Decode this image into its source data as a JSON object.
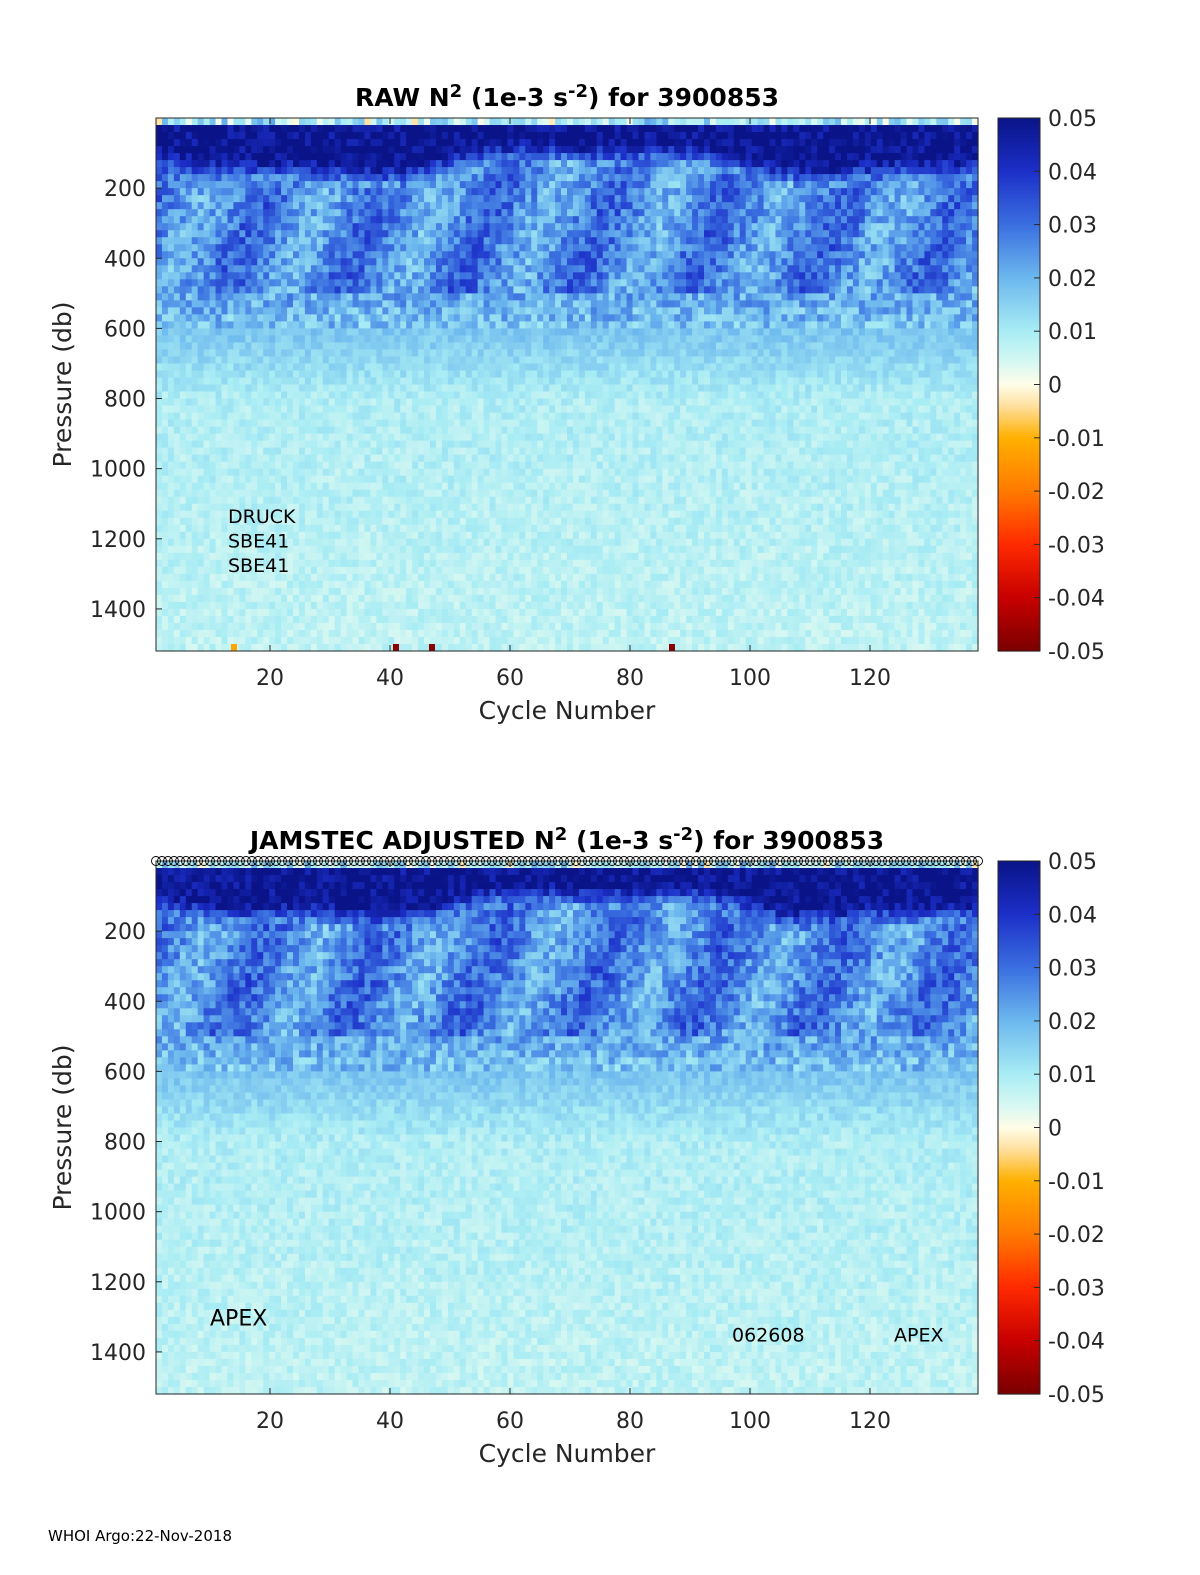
{
  "footer": "WHOI Argo:22-Nov-2018",
  "palette": {
    "stops": [
      {
        "v": -0.05,
        "c": "#7a0000"
      },
      {
        "v": -0.04,
        "c": "#c80000"
      },
      {
        "v": -0.03,
        "c": "#ff2a00"
      },
      {
        "v": -0.02,
        "c": "#ff7a00"
      },
      {
        "v": -0.01,
        "c": "#ffb000"
      },
      {
        "v": -0.004,
        "c": "#ffe0a0"
      },
      {
        "v": 0.0,
        "c": "#fffde8"
      },
      {
        "v": 0.004,
        "c": "#d8f8f2"
      },
      {
        "v": 0.01,
        "c": "#a8ecf4"
      },
      {
        "v": 0.02,
        "c": "#6cb8ee"
      },
      {
        "v": 0.03,
        "c": "#3a6fe0"
      },
      {
        "v": 0.04,
        "c": "#1c2fc8"
      },
      {
        "v": 0.05,
        "c": "#0a1488"
      }
    ]
  },
  "chart_data": [
    {
      "type": "heatmap",
      "title_parts": [
        "RAW N",
        "2",
        " (1e-3 s",
        "-2",
        ") for 3900853"
      ],
      "xlabel": "Cycle Number",
      "ylabel": "Pressure (db)",
      "xlim": [
        1,
        138
      ],
      "ylim": [
        1520,
        0
      ],
      "xticks": [
        20,
        40,
        60,
        80,
        100,
        120
      ],
      "yticks": [
        200,
        400,
        600,
        800,
        1000,
        1200,
        1400
      ],
      "clim": [
        -0.05,
        0.05
      ],
      "colorbar_ticks": [
        "0.05",
        "0.04",
        "0.03",
        "0.02",
        "0.01",
        "0",
        "-0.01",
        "-0.02",
        "-0.03",
        "-0.04",
        "-0.05"
      ],
      "grid": false,
      "annotations": [
        {
          "text": "DRUCK",
          "x": 13,
          "y": 1155
        },
        {
          "text": "SBE41",
          "x": 13,
          "y": 1225
        },
        {
          "text": "SBE41",
          "x": 13,
          "y": 1295
        }
      ],
      "field_description": {
        "thermocline_value": 0.05,
        "thermocline_depth_range": [
          0,
          140
        ],
        "mid_layer_value": 0.025,
        "mid_layer_depth_range": [
          200,
          500
        ],
        "deep_value": 0.007,
        "deep_depth_range": [
          800,
          1520
        ]
      },
      "anomalies": [
        {
          "cycle": 14,
          "pressure": 1510,
          "value": -0.012
        },
        {
          "cycle": 41,
          "pressure": 1510,
          "value": -0.048
        },
        {
          "cycle": 47,
          "pressure": 1510,
          "value": -0.048
        },
        {
          "cycle": 87,
          "pressure": 1510,
          "value": -0.048
        }
      ]
    },
    {
      "type": "heatmap",
      "title_parts": [
        "JAMSTEC  ADJUSTED N",
        "2",
        " (1e-3 s",
        "-2",
        ") for 3900853"
      ],
      "xlabel": "Cycle Number",
      "ylabel": "Pressure (db)",
      "xlim": [
        1,
        138
      ],
      "ylim": [
        1520,
        0
      ],
      "xticks": [
        20,
        40,
        60,
        80,
        100,
        120
      ],
      "yticks": [
        200,
        400,
        600,
        800,
        1000,
        1200,
        1400
      ],
      "clim": [
        -0.05,
        0.05
      ],
      "colorbar_ticks": [
        "0.05",
        "0.04",
        "0.03",
        "0.02",
        "0.01",
        "0",
        "-0.01",
        "-0.02",
        "-0.03",
        "-0.04",
        "-0.05"
      ],
      "grid": false,
      "qc_marker_row": true,
      "annotations": [
        {
          "text": "APEX",
          "x": 10,
          "y": 1325
        },
        {
          "text": "062608",
          "x": 97,
          "y": 1370
        },
        {
          "text": "APEX",
          "x": 124,
          "y": 1370
        }
      ],
      "field_description": {
        "thermocline_value": 0.05,
        "thermocline_depth_range": [
          0,
          140
        ],
        "mid_layer_value": 0.025,
        "mid_layer_depth_range": [
          200,
          500
        ],
        "deep_value": 0.007,
        "deep_depth_range": [
          800,
          1520
        ]
      },
      "anomalies": []
    }
  ]
}
